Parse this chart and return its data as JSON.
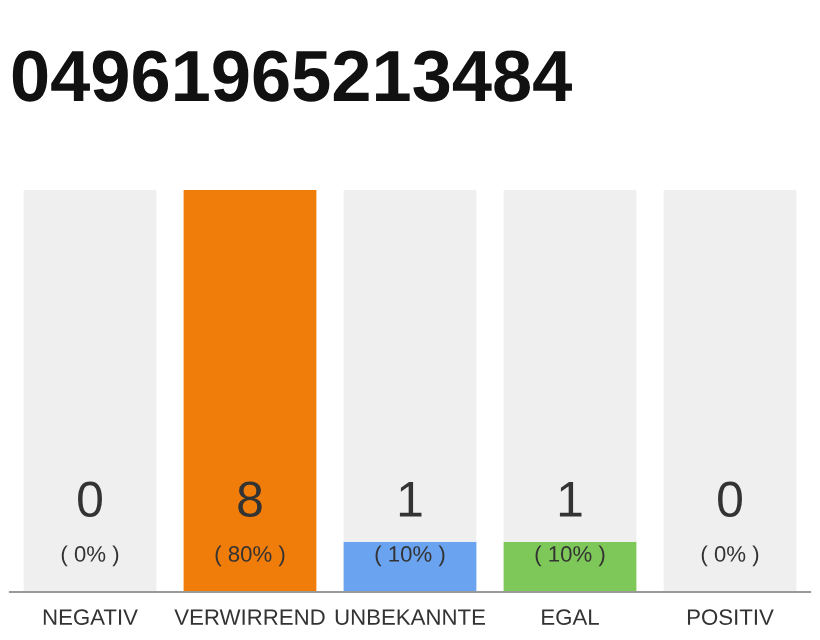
{
  "chart_data": {
    "type": "bar",
    "title": "04961965213484",
    "stacked": true,
    "categories": [
      "NEGATIV",
      "VERWIRREND",
      "UNBEKANNTE",
      "EGAL",
      "POSITIV"
    ],
    "series": [
      {
        "colors": [
          "#e0e0e0",
          "#f07d0a",
          "#6aa3f0",
          "#7ec85a",
          "#e0e0e0"
        ],
        "values": [
          0,
          8,
          1,
          1,
          0
        ],
        "value_labels": [
          null,
          "8",
          "1",
          "1",
          null
        ]
      },
      {
        "color": "#efefef",
        "values": [
          8,
          0,
          7,
          7,
          8
        ]
      }
    ],
    "ylim": [
      0,
      8
    ],
    "tick_labels": "x",
    "grid": false,
    "legend": false,
    "annotations": [
      "0",
      "( 0% )",
      "( 80% )",
      "( 10% )",
      "( 10% )",
      "0",
      "( 0% )"
    ]
  }
}
